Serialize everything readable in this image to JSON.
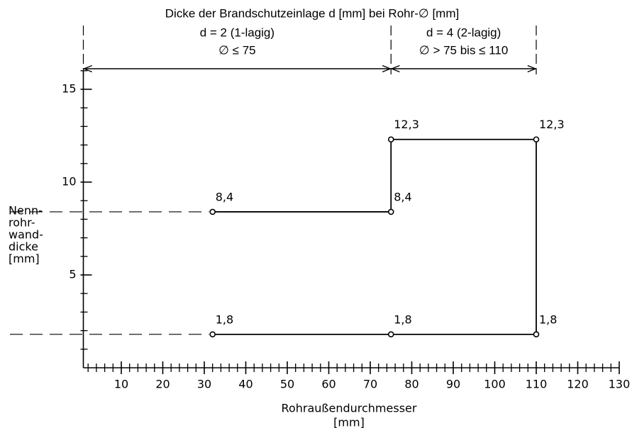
{
  "chart_data": {
    "type": "line",
    "title": "Dicke der Brandschutzeinlage d [mm] bei Rohr-∅ [mm]",
    "ranges": [
      {
        "from": 0,
        "to": 75,
        "lines": [
          "d = 2 (1-lagig)",
          "∅ ≤ 75"
        ]
      },
      {
        "from": 75,
        "to": 110,
        "lines": [
          "d = 4 (2-lagig)",
          "∅ > 75 bis ≤ 110"
        ]
      }
    ],
    "x_label": [
      "Rohraußendurchmesser",
      "[mm]"
    ],
    "y_label": [
      "Nenn-",
      "rohr-",
      "wand-",
      "dicke",
      "[mm]"
    ],
    "xlim": [
      0,
      130
    ],
    "ylim": [
      0,
      16
    ],
    "xticks": [
      10,
      20,
      30,
      40,
      50,
      60,
      70,
      80,
      90,
      100,
      110,
      120,
      130
    ],
    "yticks": [
      5,
      10,
      15
    ],
    "xminorticks": [
      2,
      4,
      6,
      8,
      12,
      14,
      16,
      18,
      22,
      24,
      26,
      28,
      32,
      34,
      36,
      38,
      42,
      44,
      46,
      48,
      52,
      54,
      56,
      58,
      62,
      64,
      66,
      68,
      72,
      74,
      76,
      78,
      82,
      84,
      86,
      88,
      92,
      94,
      96,
      98,
      102,
      104,
      106,
      108,
      112,
      114,
      116,
      118,
      122,
      124,
      126,
      128
    ],
    "yminorticks": [
      1,
      2,
      3,
      4,
      6,
      7,
      8,
      9,
      11,
      12,
      13,
      14,
      16
    ],
    "series": [
      {
        "color": "#000000",
        "x": [
          32,
          75,
          110,
          110,
          75,
          75,
          32
        ],
        "values": [
          1.8,
          1.8,
          1.8,
          12.3,
          12.3,
          8.4,
          8.4
        ],
        "value_labels": [
          "1,8",
          "1,8",
          "1,8",
          "12,3",
          "12,3",
          "8,4",
          "8,4"
        ]
      }
    ]
  }
}
